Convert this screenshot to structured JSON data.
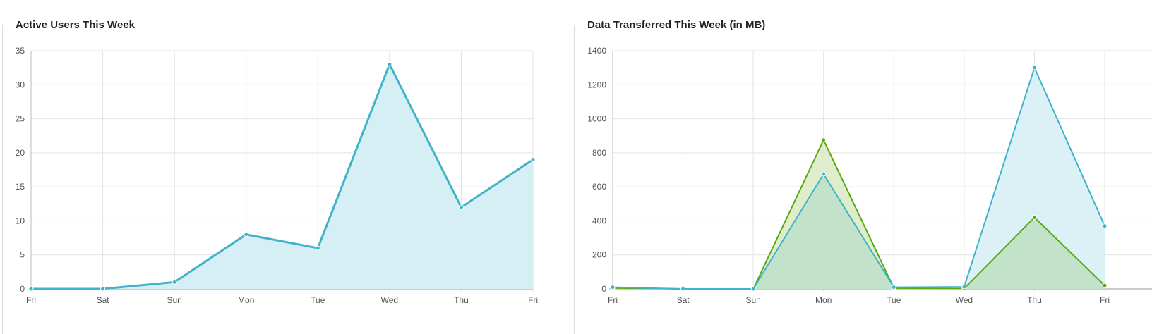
{
  "chart_data": [
    {
      "type": "area",
      "title": "Active Users This Week",
      "categories": [
        "Fri",
        "Sat",
        "Sun",
        "Mon",
        "Tue",
        "Wed",
        "Thu",
        "Fri"
      ],
      "ylim": [
        0,
        35
      ],
      "yticks": [
        0,
        5,
        10,
        15,
        20,
        25,
        30,
        35
      ],
      "grid": true,
      "series": [
        {
          "values": [
            0,
            0,
            1,
            8,
            6,
            33,
            12,
            19
          ],
          "color": "#3fb4c8",
          "fill": "#d6eff4"
        }
      ]
    },
    {
      "type": "area",
      "title": "Data Transferred This Week (in MB)",
      "categories": [
        "Fri",
        "Sat",
        "Sun",
        "Mon",
        "Tue",
        "Wed",
        "Thu",
        "Fri"
      ],
      "ylim": [
        0,
        1400
      ],
      "yticks": [
        0,
        200,
        400,
        600,
        800,
        1000,
        1200,
        1400
      ],
      "grid": true,
      "series": [
        {
          "values": [
            5,
            0,
            0,
            875,
            5,
            2,
            420,
            20
          ],
          "color": "#5aa812",
          "fill": "#dbeac4"
        },
        {
          "values": [
            10,
            0,
            0,
            675,
            10,
            12,
            1300,
            370
          ],
          "color": "#3fb4c8",
          "fill": "#d6eff4"
        }
      ],
      "overlap_fill": "#c2e2c9"
    }
  ]
}
